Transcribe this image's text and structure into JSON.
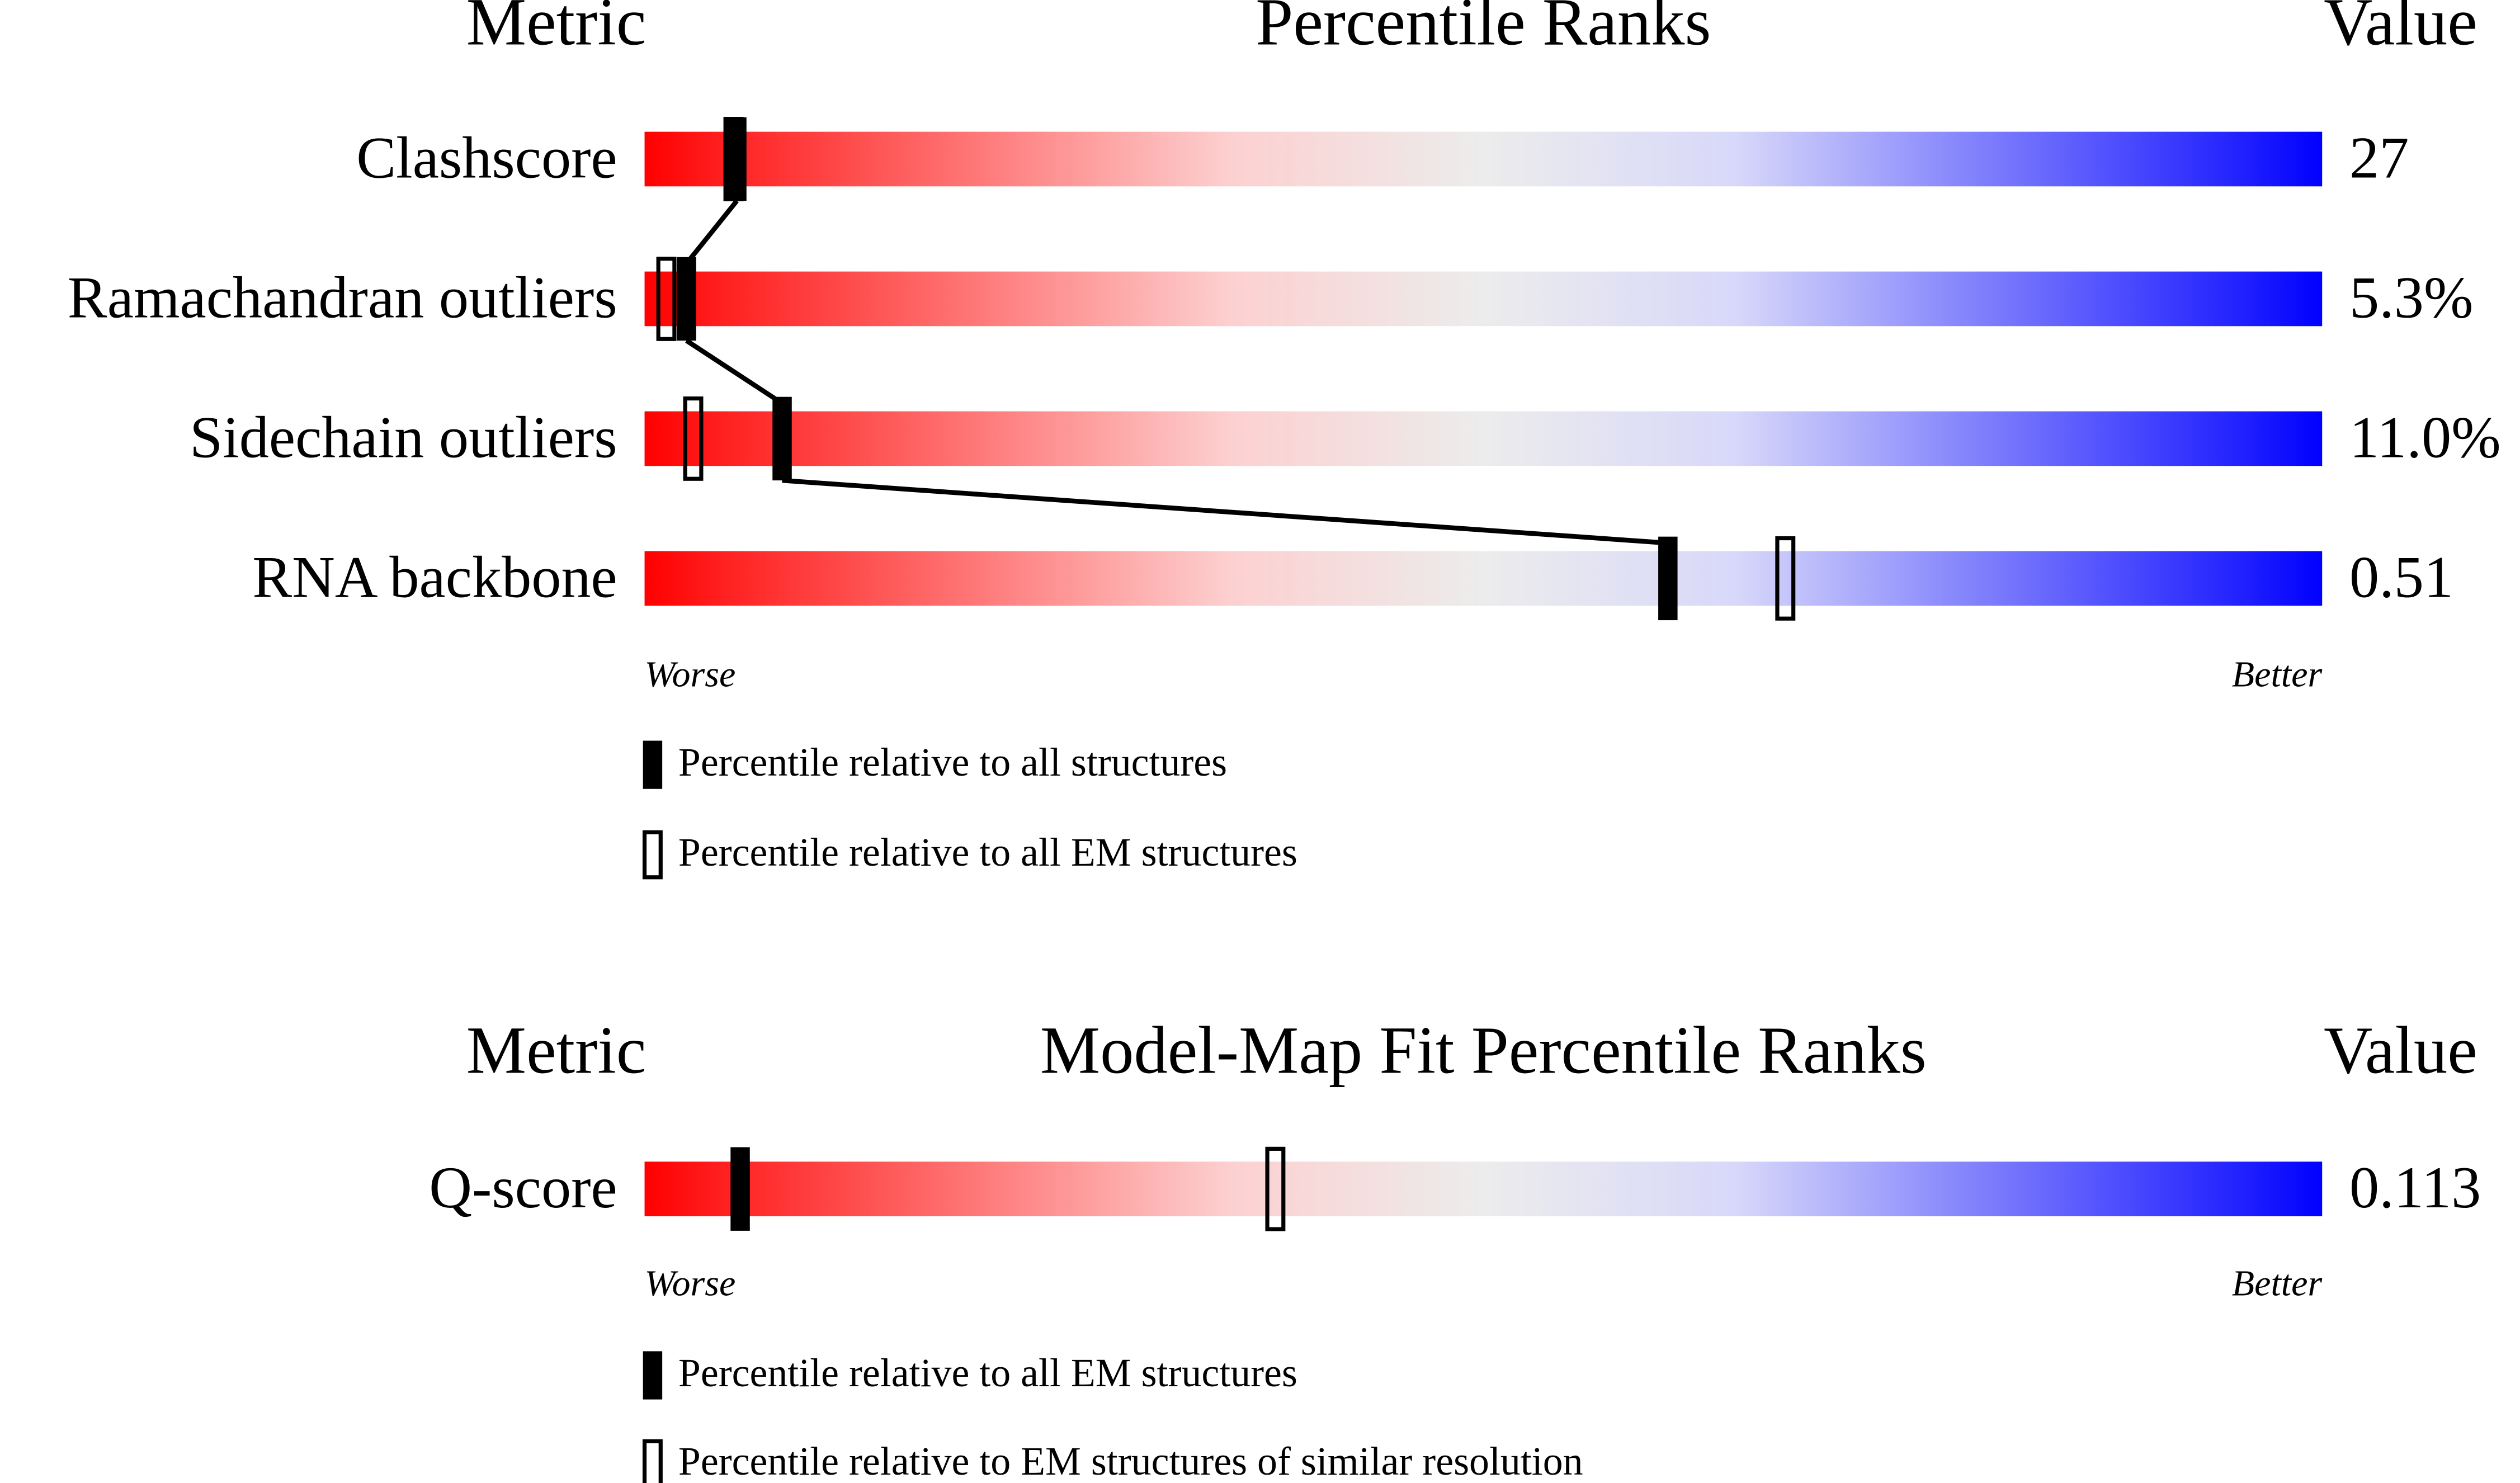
{
  "sections": [
    {
      "header": {
        "metric": "Metric",
        "title": "Percentile Ranks",
        "value": "Value"
      },
      "rows": [
        {
          "metric": "Clashscore",
          "value": "27",
          "percentile_all": 5.5,
          "percentile_em": 5.3
        },
        {
          "metric": "Ramachandran outliers",
          "value": "5.3%",
          "percentile_all": 2.5,
          "percentile_em": 1.3
        },
        {
          "metric": "Sidechain outliers",
          "value": "11.0%",
          "percentile_all": 8.2,
          "percentile_em": 2.9
        },
        {
          "metric": "RNA backbone",
          "value": "0.51",
          "percentile_all": 61.0,
          "percentile_em": 68.0
        }
      ],
      "worse": "Worse",
      "better": "Better",
      "legend": [
        "Percentile relative to all structures",
        "Percentile relative to all EM structures"
      ]
    },
    {
      "header": {
        "metric": "Metric",
        "title": "Model-Map Fit Percentile Ranks",
        "value": "Value"
      },
      "rows": [
        {
          "metric": "Q-score",
          "value": "0.113",
          "percentile_all": 5.7,
          "percentile_em": 37.6
        }
      ],
      "worse": "Worse",
      "better": "Better",
      "legend": [
        "Percentile relative to all EM structures",
        "Percentile relative to EM structures of similar resolution"
      ]
    }
  ]
}
